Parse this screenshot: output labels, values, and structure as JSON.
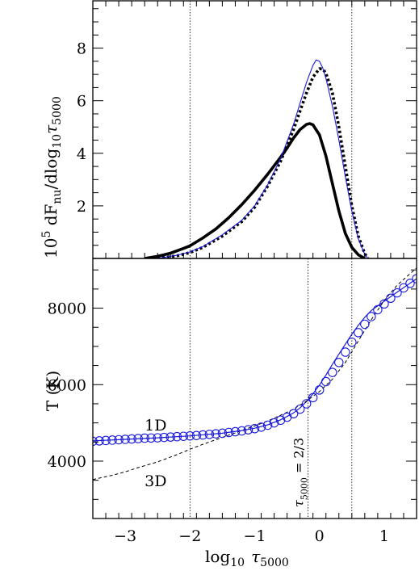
{
  "chart_data": [
    {
      "panel": "top",
      "type": "line",
      "ylabel_parts": {
        "a": "10",
        "sup": "5",
        "b": " dF",
        "sub1": "nu",
        "c": "/dlog",
        "sub2": "10",
        "tau": "τ",
        "sub3": "5000"
      },
      "xlim": [
        -3.5,
        1.5
      ],
      "ylim": [
        0,
        9.8
      ],
      "yticks": [
        2,
        4,
        6,
        8
      ],
      "vlines": [
        -2,
        0.5
      ],
      "series": [
        {
          "style": "solid-thick",
          "color": "#000000",
          "x": [
            -2.7,
            -2.5,
            -2.3,
            -2.1,
            -2.0,
            -1.8,
            -1.6,
            -1.4,
            -1.2,
            -1.0,
            -0.8,
            -0.6,
            -0.5,
            -0.4,
            -0.3,
            -0.2,
            -0.15,
            -0.1,
            0.0,
            0.1,
            0.2,
            0.3,
            0.4,
            0.5,
            0.6,
            0.7
          ],
          "y": [
            0.0,
            0.08,
            0.2,
            0.38,
            0.48,
            0.78,
            1.12,
            1.55,
            2.05,
            2.6,
            3.2,
            3.85,
            4.2,
            4.58,
            4.9,
            5.1,
            5.13,
            5.08,
            4.7,
            3.9,
            2.85,
            1.8,
            0.95,
            0.42,
            0.14,
            0.0
          ]
        },
        {
          "style": "dashed-thick",
          "color": "#000000",
          "x": [
            -2.5,
            -2.2,
            -2.0,
            -1.8,
            -1.5,
            -1.2,
            -1.0,
            -0.8,
            -0.6,
            -0.4,
            -0.3,
            -0.2,
            -0.1,
            0.0,
            0.05,
            0.1,
            0.2,
            0.3,
            0.4,
            0.5,
            0.6,
            0.7,
            0.75
          ],
          "y": [
            0.0,
            0.1,
            0.22,
            0.42,
            0.85,
            1.4,
            1.95,
            2.75,
            3.7,
            4.9,
            5.6,
            6.3,
            6.9,
            7.22,
            7.2,
            7.05,
            6.3,
            5.0,
            3.5,
            2.0,
            0.85,
            0.18,
            0.0
          ]
        },
        {
          "style": "solid-thin",
          "color": "#1a1adb",
          "x": [
            -2.5,
            -2.2,
            -2.0,
            -1.8,
            -1.5,
            -1.2,
            -1.0,
            -0.8,
            -0.6,
            -0.4,
            -0.3,
            -0.2,
            -0.1,
            -0.05,
            0.0,
            0.05,
            0.1,
            0.2,
            0.3,
            0.4,
            0.5,
            0.6,
            0.7,
            0.75
          ],
          "y": [
            0.0,
            0.12,
            0.25,
            0.45,
            0.9,
            1.45,
            2.0,
            2.8,
            3.8,
            5.1,
            5.9,
            6.7,
            7.35,
            7.55,
            7.5,
            7.25,
            6.85,
            5.8,
            4.5,
            3.1,
            1.8,
            0.75,
            0.15,
            0.0
          ]
        }
      ]
    },
    {
      "panel": "bottom",
      "type": "line",
      "ylabel": "T (K)",
      "xlabel_parts": {
        "a": "log",
        "sub1": "10",
        "tau": "τ",
        "sub2": "5000"
      },
      "xlim": [
        -3.5,
        1.5
      ],
      "ylim": [
        2500,
        9300
      ],
      "xticks": [
        -3,
        -2,
        -1,
        0,
        1
      ],
      "xtick_labels": [
        "−3",
        "−2",
        "−1",
        "0",
        "1"
      ],
      "yticks": [
        4000,
        6000,
        8000
      ],
      "vlines": [
        -2,
        -0.176,
        0.5
      ],
      "labels": [
        {
          "text": "1D",
          "x": -2.7,
          "y": 4800
        },
        {
          "text": "3D",
          "x": -2.7,
          "y": 3350
        }
      ],
      "tau_label_parts": {
        "tau": "τ",
        "sub": "5000",
        "rest": " = 2/3"
      },
      "series": [
        {
          "name": "1D",
          "style": "solid",
          "color": "#1a1adb",
          "x": [
            -3.5,
            -3.0,
            -2.5,
            -2.0,
            -1.5,
            -1.2,
            -1.0,
            -0.8,
            -0.6,
            -0.4,
            -0.3,
            -0.2,
            -0.1,
            0.0,
            0.1,
            0.2,
            0.3,
            0.4,
            0.5,
            0.6,
            0.7,
            0.8,
            1.0,
            1.2,
            1.5
          ],
          "y": [
            4530,
            4570,
            4610,
            4660,
            4730,
            4800,
            4860,
            4950,
            5080,
            5260,
            5390,
            5560,
            5760,
            5990,
            6250,
            6530,
            6800,
            7060,
            7320,
            7550,
            7760,
            7940,
            8180,
            8420,
            8770
          ]
        },
        {
          "name": "3D",
          "style": "dashed",
          "color": "#000000",
          "x": [
            -3.5,
            -3.2,
            -3.0,
            -2.8,
            -2.5,
            -2.2,
            -2.0,
            -1.8,
            -1.5,
            -1.2,
            -1.0,
            -0.8,
            -0.6,
            -0.4,
            -0.2,
            0.0,
            0.2,
            0.4,
            0.6,
            0.8,
            1.0,
            1.2,
            1.5
          ],
          "y": [
            3520,
            3630,
            3720,
            3830,
            3980,
            4170,
            4310,
            4440,
            4620,
            4800,
            4920,
            5050,
            5200,
            5360,
            5570,
            5820,
            6140,
            6580,
            7140,
            7700,
            8200,
            8600,
            9050
          ]
        },
        {
          "name": "circles",
          "style": "markers",
          "color": "#1a1adb",
          "x": [
            -3.5,
            -3.4,
            -3.3,
            -3.2,
            -3.1,
            -3.0,
            -2.9,
            -2.8,
            -2.7,
            -2.6,
            -2.5,
            -2.4,
            -2.3,
            -2.2,
            -2.1,
            -2.0,
            -1.9,
            -1.8,
            -1.7,
            -1.6,
            -1.5,
            -1.4,
            -1.3,
            -1.2,
            -1.1,
            -1.0,
            -0.9,
            -0.8,
            -0.7,
            -0.6,
            -0.5,
            -0.4,
            -0.3,
            -0.2,
            -0.1,
            0.0,
            0.1,
            0.2,
            0.3,
            0.4,
            0.5,
            0.6,
            0.7,
            0.8,
            0.9,
            1.0,
            1.1,
            1.2,
            1.3,
            1.4,
            1.5
          ],
          "y": [
            4520,
            4530,
            4540,
            4550,
            4560,
            4570,
            4580,
            4590,
            4600,
            4605,
            4610,
            4620,
            4630,
            4640,
            4650,
            4660,
            4670,
            4685,
            4700,
            4715,
            4730,
            4750,
            4770,
            4790,
            4820,
            4850,
            4890,
            4940,
            5000,
            5070,
            5150,
            5240,
            5360,
            5500,
            5660,
            5860,
            6080,
            6320,
            6580,
            6850,
            7110,
            7360,
            7580,
            7780,
            7960,
            8110,
            8260,
            8400,
            8530,
            8650,
            8770
          ]
        }
      ]
    }
  ]
}
